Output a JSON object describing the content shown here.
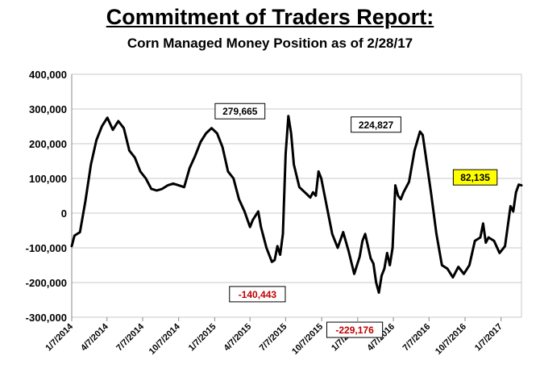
{
  "chart_data": {
    "type": "line",
    "title": "Commitment of Traders Report:",
    "subtitle": "Corn Managed Money Position as of 2/28/17",
    "xlabel": "",
    "ylabel": "",
    "ylim": [
      -300000,
      400000
    ],
    "yticks": [
      400000,
      300000,
      200000,
      100000,
      0,
      -100000,
      -200000,
      -300000
    ],
    "ytick_labels": [
      "400,000",
      "300,000",
      "200,000",
      "100,000",
      "0",
      "-100,000",
      "-200,000",
      "-300,000"
    ],
    "xlim": [
      "2014-01-07",
      "2017-02-28"
    ],
    "xticks": [
      "2014-01-07",
      "2014-04-07",
      "2014-07-07",
      "2014-10-07",
      "2015-01-07",
      "2015-04-07",
      "2015-07-07",
      "2015-10-07",
      "2016-01-07",
      "2016-04-07",
      "2016-07-07",
      "2016-10-07",
      "2017-01-07"
    ],
    "xtick_labels": [
      "1/7/2014",
      "4/7/2014",
      "7/7/2014",
      "10/7/2014",
      "1/7/2015",
      "4/7/2015",
      "7/7/2015",
      "10/7/2015",
      "1/7/2016",
      "4/7/2016",
      "7/7/2016",
      "10/7/2016",
      "1/7/2017"
    ],
    "grid": true,
    "line_color": "#000000",
    "series": [
      {
        "name": "",
        "x": [
          "2014-01-07",
          "2014-01-14",
          "2014-01-28",
          "2014-02-11",
          "2014-02-25",
          "2014-03-11",
          "2014-03-25",
          "2014-04-08",
          "2014-04-22",
          "2014-05-06",
          "2014-05-20",
          "2014-06-03",
          "2014-06-17",
          "2014-07-01",
          "2014-07-15",
          "2014-07-29",
          "2014-08-12",
          "2014-08-26",
          "2014-09-09",
          "2014-09-23",
          "2014-10-07",
          "2014-10-21",
          "2014-11-04",
          "2014-11-18",
          "2014-12-02",
          "2014-12-16",
          "2014-12-30",
          "2015-01-13",
          "2015-01-27",
          "2015-02-10",
          "2015-02-24",
          "2015-03-10",
          "2015-03-24",
          "2015-04-07",
          "2015-04-14",
          "2015-04-28",
          "2015-05-05",
          "2015-05-19",
          "2015-06-02",
          "2015-06-09",
          "2015-06-16",
          "2015-06-23",
          "2015-06-30",
          "2015-07-07",
          "2015-07-14",
          "2015-07-21",
          "2015-07-28",
          "2015-08-11",
          "2015-08-25",
          "2015-09-08",
          "2015-09-15",
          "2015-09-22",
          "2015-09-29",
          "2015-10-06",
          "2015-10-20",
          "2015-11-03",
          "2015-11-17",
          "2015-12-01",
          "2015-12-15",
          "2015-12-29",
          "2016-01-12",
          "2016-01-19",
          "2016-01-26",
          "2016-02-09",
          "2016-02-16",
          "2016-02-23",
          "2016-03-01",
          "2016-03-08",
          "2016-03-15",
          "2016-03-22",
          "2016-03-29",
          "2016-04-05",
          "2016-04-12",
          "2016-04-19",
          "2016-04-26",
          "2016-05-03",
          "2016-05-17",
          "2016-05-31",
          "2016-06-14",
          "2016-06-21",
          "2016-06-28",
          "2016-07-12",
          "2016-07-26",
          "2016-08-09",
          "2016-08-23",
          "2016-09-06",
          "2016-09-20",
          "2016-10-04",
          "2016-10-18",
          "2016-11-01",
          "2016-11-15",
          "2016-11-22",
          "2016-11-29",
          "2016-12-06",
          "2016-12-20",
          "2017-01-03",
          "2017-01-17",
          "2017-01-31",
          "2017-02-07",
          "2017-02-14",
          "2017-02-21",
          "2017-02-28"
        ],
        "values": [
          -95000,
          -65000,
          -55000,
          35000,
          140000,
          210000,
          250000,
          275000,
          240000,
          265000,
          245000,
          180000,
          160000,
          120000,
          100000,
          70000,
          65000,
          70000,
          80000,
          85000,
          80000,
          75000,
          130000,
          165000,
          205000,
          230000,
          245000,
          230000,
          190000,
          120000,
          100000,
          40000,
          5000,
          -40000,
          -20000,
          5000,
          -40000,
          -100000,
          -140443,
          -135000,
          -95000,
          -120000,
          -60000,
          170000,
          279665,
          230000,
          140000,
          75000,
          60000,
          45000,
          60000,
          50000,
          120000,
          100000,
          20000,
          -60000,
          -100000,
          -55000,
          -110000,
          -175000,
          -125000,
          -80000,
          -60000,
          -130000,
          -145000,
          -200000,
          -229176,
          -180000,
          -160000,
          -115000,
          -150000,
          -100000,
          80000,
          50000,
          40000,
          60000,
          90000,
          180000,
          235000,
          224827,
          170000,
          60000,
          -60000,
          -150000,
          -160000,
          -185000,
          -155000,
          -175000,
          -150000,
          -80000,
          -70000,
          -30000,
          -85000,
          -70000,
          -80000,
          -115000,
          -95000,
          20000,
          5000,
          60000,
          82135,
          80000
        ]
      }
    ],
    "annotations": [
      {
        "label": "279,665",
        "x": "2015-07-14",
        "y": 279665,
        "style": "white"
      },
      {
        "label": "-140,443",
        "x": "2015-06-02",
        "y": -140443,
        "style": "red"
      },
      {
        "label": "224,827",
        "x": "2016-06-21",
        "y": 224827,
        "style": "white"
      },
      {
        "label": "-229,176",
        "x": "2016-03-01",
        "y": -229176,
        "style": "red"
      },
      {
        "label": "82,135",
        "x": "2017-02-21",
        "y": 82135,
        "style": "yellow"
      }
    ],
    "colors": {
      "grid": "#c8c8c8",
      "red_text": "#c00000",
      "yellow_box": "#ffff00"
    }
  }
}
